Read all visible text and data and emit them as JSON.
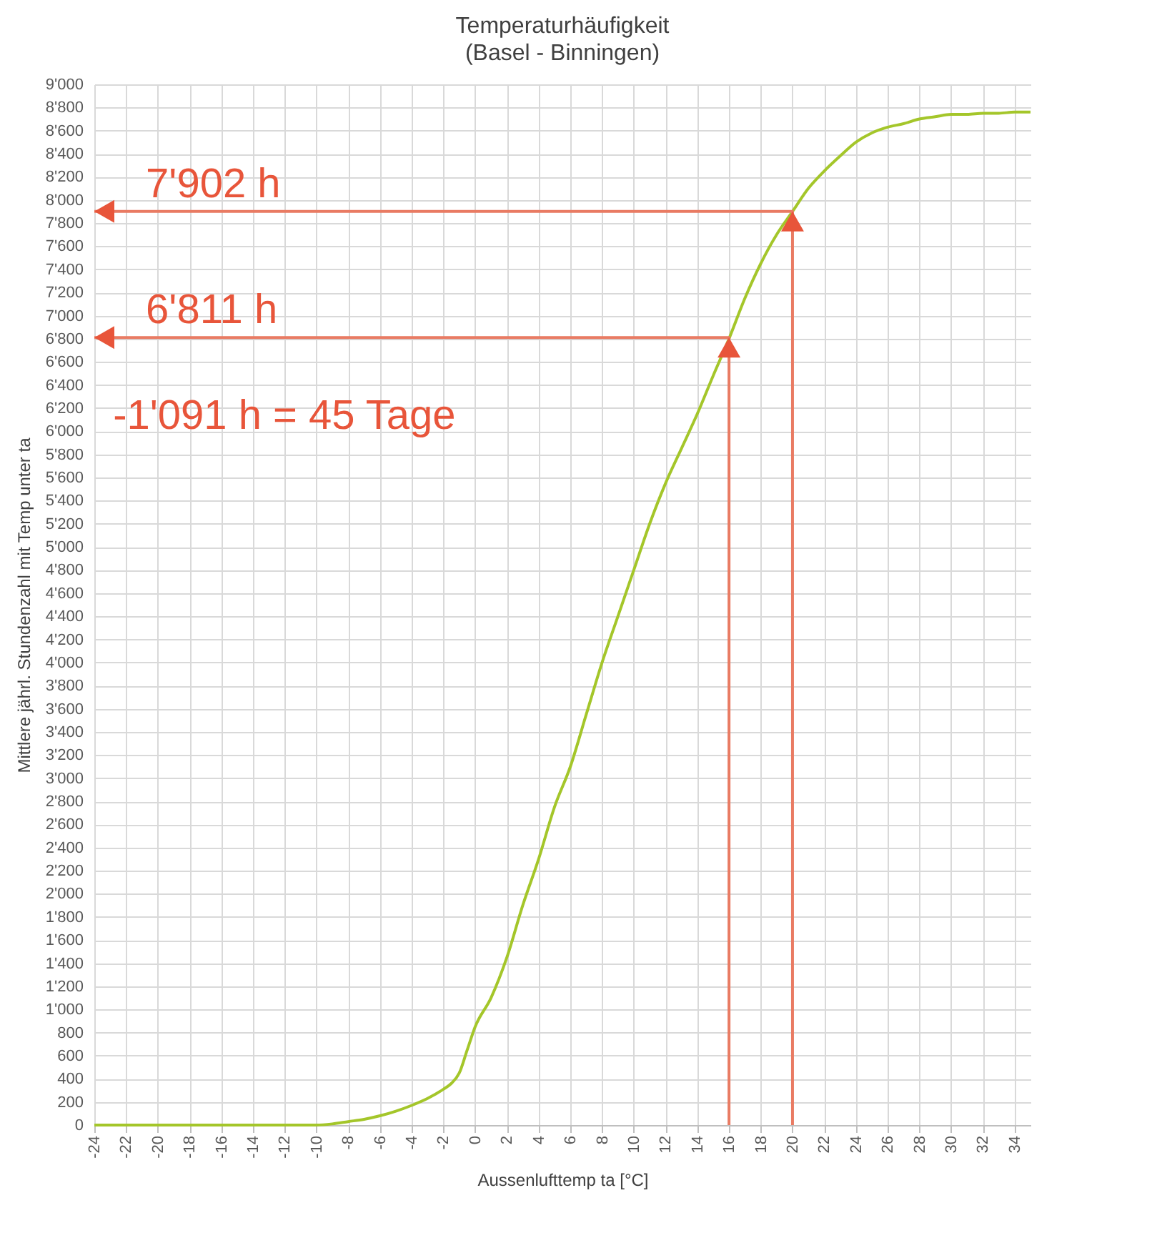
{
  "chart_data": {
    "type": "line",
    "title": "Temperaturhäufigkeit",
    "subtitle": "(Basel - Binningen)",
    "xlabel": "Aussenlufttemp ta [°C]",
    "ylabel": "Mittlere jährl. Stundenzahl mit Temp unter ta",
    "x": [
      -24,
      -22,
      -20,
      -18,
      -16,
      -14,
      -12,
      -10,
      -9,
      -8,
      -7,
      -6,
      -5,
      -4,
      -3,
      -2,
      -1.5,
      -1,
      -0.5,
      0,
      1,
      2,
      3,
      4,
      5,
      6,
      7,
      8,
      9,
      10,
      11,
      12,
      13,
      14,
      15,
      16,
      17,
      18,
      19,
      20,
      21,
      22,
      23,
      24,
      25,
      26,
      27,
      28,
      29,
      30,
      31,
      32,
      33,
      34,
      35
    ],
    "series": [
      {
        "color": "#a4c62a",
        "values": [
          0,
          0,
          0,
          0,
          0,
          0,
          0,
          0,
          10,
          30,
          50,
          80,
          120,
          170,
          230,
          310,
          360,
          450,
          650,
          850,
          1100,
          1450,
          1900,
          2300,
          2750,
          3100,
          3550,
          4000,
          4400,
          4800,
          5200,
          5550,
          5850,
          6150,
          6480,
          6800,
          7150,
          7450,
          7700,
          7900,
          8100,
          8250,
          8380,
          8500,
          8580,
          8630,
          8660,
          8700,
          8720,
          8740,
          8740,
          8750,
          8750,
          8760,
          8760
        ]
      },
      {
        "color": "#e97b63",
        "x": [
          16,
          16,
          -24
        ],
        "values": [
          0,
          6811,
          6811
        ]
      },
      {
        "color": "#e97b63",
        "x": [
          20,
          20,
          -24
        ],
        "values": [
          0,
          7902,
          7902
        ]
      }
    ],
    "xlim": [
      -24,
      35
    ],
    "xticks": [
      -24,
      -22,
      -20,
      -18,
      -16,
      -14,
      -12,
      -10,
      -8,
      -6,
      -4,
      -2,
      0,
      2,
      4,
      6,
      8,
      10,
      12,
      14,
      16,
      18,
      20,
      22,
      24,
      26,
      28,
      30,
      32,
      34
    ],
    "ylim": [
      0,
      9000
    ],
    "yticks": [
      0,
      200,
      400,
      600,
      800,
      {
        "value": 1000,
        "label": "1'000"
      },
      {
        "value": 1200,
        "label": "1'200"
      },
      {
        "value": 1400,
        "label": "1'400"
      },
      {
        "value": 1600,
        "label": "1'600"
      },
      {
        "value": 1800,
        "label": "1'800"
      },
      {
        "value": 2000,
        "label": "2'000"
      },
      {
        "value": 2200,
        "label": "2'200"
      },
      {
        "value": 2400,
        "label": "2'400"
      },
      {
        "value": 2600,
        "label": "2'600"
      },
      {
        "value": 2800,
        "label": "2'800"
      },
      {
        "value": 3000,
        "label": "3'000"
      },
      {
        "value": 3200,
        "label": "3'200"
      },
      {
        "value": 3400,
        "label": "3'400"
      },
      {
        "value": 3600,
        "label": "3'600"
      },
      {
        "value": 3800,
        "label": "3'800"
      },
      {
        "value": 4000,
        "label": "4'000"
      },
      {
        "value": 4200,
        "label": "4'200"
      },
      {
        "value": 4400,
        "label": "4'400"
      },
      {
        "value": 4600,
        "label": "4'600"
      },
      {
        "value": 4800,
        "label": "4'800"
      },
      {
        "value": 5000,
        "label": "5'000"
      },
      {
        "value": 5200,
        "label": "5'200"
      },
      {
        "value": 5400,
        "label": "5'400"
      },
      {
        "value": 5600,
        "label": "5'600"
      },
      {
        "value": 5800,
        "label": "5'800"
      },
      {
        "value": 6000,
        "label": "6'000"
      },
      {
        "value": 6200,
        "label": "6'200"
      },
      {
        "value": 6400,
        "label": "6'400"
      },
      {
        "value": 6600,
        "label": "6'600"
      },
      {
        "value": 6800,
        "label": "6'800"
      },
      {
        "value": 7000,
        "label": "7'000"
      },
      {
        "value": 7200,
        "label": "7'200"
      },
      {
        "value": 7400,
        "label": "7'400"
      },
      {
        "value": 7600,
        "label": "7'600"
      },
      {
        "value": 7800,
        "label": "7'800"
      },
      {
        "value": 8000,
        "label": "8'000"
      },
      {
        "value": 8200,
        "label": "8'200"
      },
      {
        "value": 8400,
        "label": "8'400"
      },
      {
        "value": 8600,
        "label": "8'600"
      },
      {
        "value": 8800,
        "label": "8'800"
      },
      {
        "value": 9000,
        "label": "9'000"
      }
    ],
    "grid": true,
    "annotations": [
      {
        "text": "7'902 h",
        "x": -24,
        "y": 7902
      },
      {
        "text": "6'811 h",
        "x": -24,
        "y": 6811
      },
      "-1'091 h = 45 Tage"
    ]
  }
}
